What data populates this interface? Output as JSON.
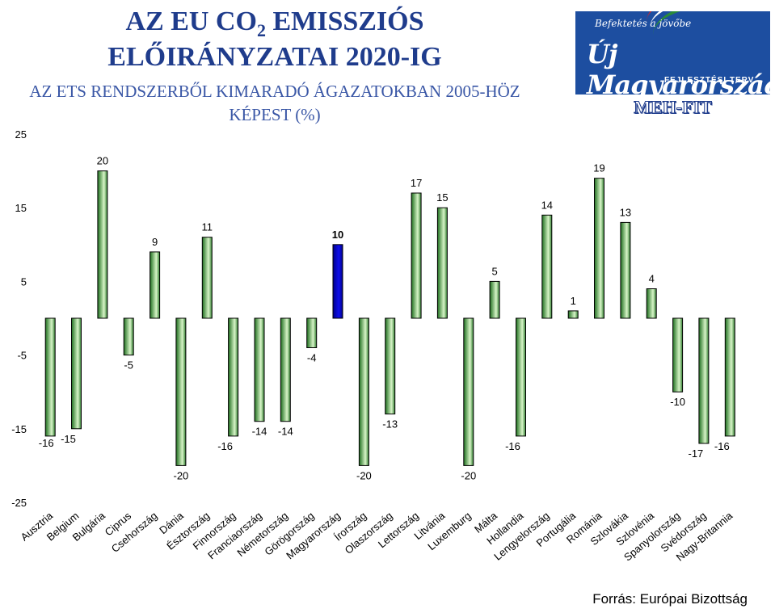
{
  "header": {
    "title_line1_pre": "AZ EU CO",
    "title_line1_sub": "2",
    "title_line1_post": " EMISSZIÓS",
    "title_line2": "ELŐIRÁNYZATAI 2020-IG",
    "subtitle_line1": "AZ ETS RENDSZERBŐL  KIMARADÓ ÁGAZATOKBAN 2005-HÖZ",
    "subtitle_line2": "KÉPEST (%)"
  },
  "logo": {
    "slogan": "Befektetés a jövőbe",
    "name": "Új Magyarország",
    "plan": "FEJLESZTÉSI TERV",
    "caption": "MEH-FIT"
  },
  "footer": {
    "source": "Forrás: Európai Bizottság"
  },
  "colors": {
    "normal_dark": "#1e6e1e",
    "normal_light": "#d8f5c8",
    "highlight": "#1010ee",
    "highlight_dark": "#00008a"
  },
  "chart_data": {
    "type": "bar",
    "categories": [
      "Ausztria",
      "Belgium",
      "Bulgária",
      "Ciprus",
      "Csehország",
      "Dánia",
      "Észtország",
      "Finnország",
      "Franciaország",
      "Németország",
      "Görögország",
      "Magyarország",
      "Írország",
      "Olaszország",
      "Lettország",
      "Litvánia",
      "Luxemburg",
      "Málta",
      "Hollandia",
      "Lengyelország",
      "Portugália",
      "Románia",
      "Szlovákia",
      "Szlovénia",
      "Spanyolország",
      "Svédország",
      "Nagy-Britannia"
    ],
    "values": [
      -16,
      -15,
      20,
      -5,
      9,
      -20,
      11,
      -16,
      -14,
      -14,
      -4,
      10,
      -20,
      -13,
      17,
      15,
      -20,
      5,
      -16,
      14,
      1,
      19,
      13,
      4,
      -10,
      -17,
      -16
    ],
    "highlight_category": "Magyarország",
    "y_ticks": [
      "25",
      "15",
      "5",
      "-5",
      "-15",
      "-25"
    ],
    "ylim": [
      -25,
      25
    ],
    "grid": false,
    "legend": "none"
  }
}
